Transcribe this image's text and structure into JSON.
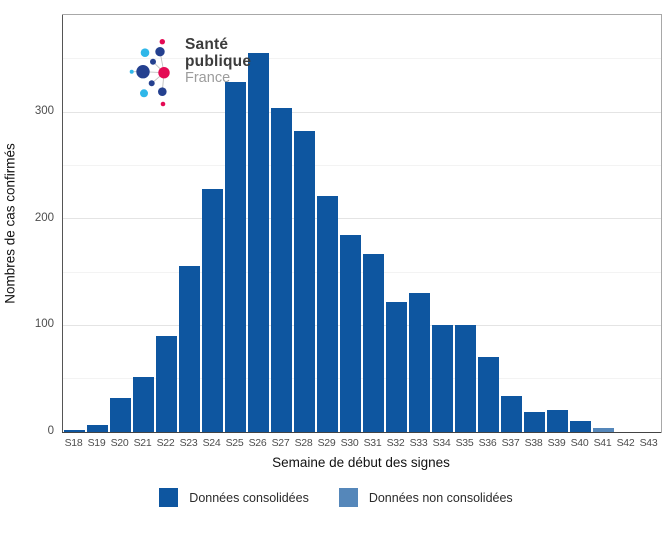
{
  "logo": {
    "line1": "Santé",
    "line2": "publique",
    "line3": "France"
  },
  "axes": {
    "x_title": "Semaine de début des signes",
    "y_title": "Nombres de cas confirmés"
  },
  "legend": {
    "items": [
      {
        "label": "Données consolidées",
        "color": "#0e56a0"
      },
      {
        "label": "Données non consolidées",
        "color": "#5587ba"
      }
    ]
  },
  "colors": {
    "consolidated": "#0e56a0",
    "non_consolidated": "#5587ba",
    "logo_navy": "#24408f",
    "logo_cyan": "#2fb7e9",
    "logo_magenta": "#e40a54"
  },
  "chart_data": {
    "type": "bar",
    "title": "",
    "xlabel": "Semaine de début des signes",
    "ylabel": "Nombres de cas confirmés",
    "categories": [
      "S18",
      "S19",
      "S20",
      "S21",
      "S22",
      "S23",
      "S24",
      "S25",
      "S26",
      "S27",
      "S28",
      "S29",
      "S30",
      "S31",
      "S32",
      "S33",
      "S34",
      "S35",
      "S36",
      "S37",
      "S38",
      "S39",
      "S40",
      "S41",
      "S42",
      "S43"
    ],
    "series": [
      {
        "name": "Données consolidées",
        "color": "#0e56a0",
        "values": [
          2,
          7,
          32,
          52,
          90,
          156,
          228,
          328,
          355,
          304,
          282,
          221,
          185,
          167,
          122,
          130,
          100,
          100,
          70,
          34,
          19,
          21,
          10,
          0,
          0,
          0
        ]
      },
      {
        "name": "Données non consolidées",
        "color": "#5587ba",
        "values": [
          0,
          0,
          0,
          0,
          0,
          0,
          0,
          0,
          0,
          0,
          0,
          0,
          0,
          0,
          0,
          0,
          0,
          0,
          0,
          0,
          0,
          0,
          0,
          4,
          0,
          0
        ]
      }
    ],
    "ylim": [
      0,
      391
    ],
    "yticks": [
      0,
      100,
      200,
      300
    ],
    "yticks_minor": [
      50,
      150,
      250,
      350
    ],
    "grid": "horizontal-only",
    "legend_position": "bottom"
  }
}
